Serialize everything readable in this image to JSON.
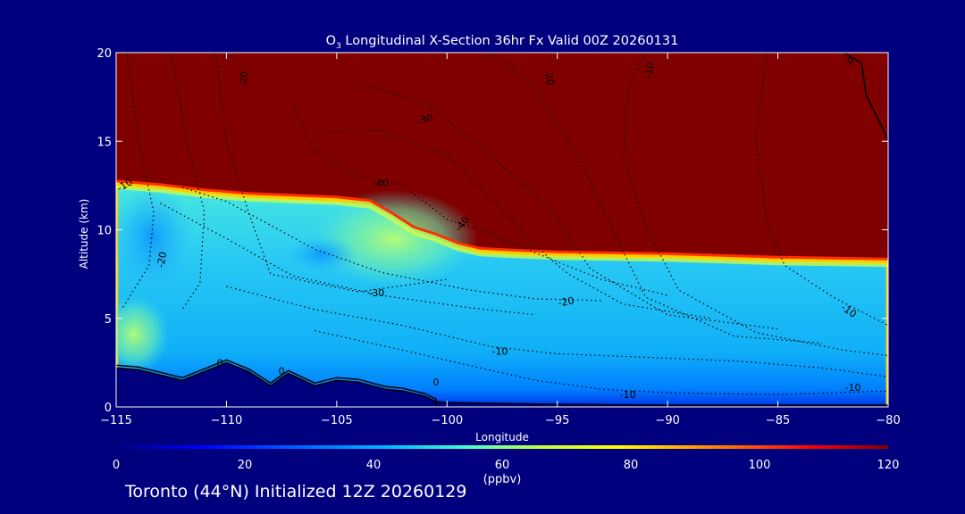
{
  "chart_data": {
    "type": "heatmap",
    "title_prefix": "O",
    "title_sub": "3",
    "title_rest": " Longitudinal X-Section 36hr  Fx Valid 00Z 20260131",
    "xlabel": "Longitude",
    "ylabel": "Altitude (km)",
    "xlim": [
      -115,
      -80
    ],
    "ylim": [
      0,
      20
    ],
    "xticks": [
      -115,
      -110,
      -105,
      -100,
      -95,
      -90,
      -85,
      -80
    ],
    "xtick_labels": [
      "−115",
      "−110",
      "−105",
      "−100",
      "−95",
      "−90",
      "−85",
      "−80"
    ],
    "yticks": [
      0,
      5,
      10,
      15,
      20
    ],
    "ytick_labels": [
      "0",
      "5",
      "10",
      "15",
      "20"
    ],
    "colorbar": {
      "label": "(ppbv)",
      "range": [
        0,
        120
      ],
      "ticks": [
        0,
        20,
        40,
        60,
        80,
        100,
        120
      ],
      "tick_labels": [
        "0",
        "20",
        "40",
        "60",
        "80",
        "100",
        "120"
      ]
    },
    "tropopause_altitude_km": {
      "lon": [
        -115,
        -113,
        -111,
        -109,
        -107,
        -105,
        -103.5,
        -102.5,
        -101.5,
        -100.5,
        -99.5,
        -98.5,
        -97,
        -95,
        -90,
        -85,
        -80
      ],
      "alt": [
        12.6,
        12.4,
        12.1,
        11.9,
        11.8,
        11.7,
        11.5,
        10.8,
        10.0,
        9.6,
        9.1,
        8.8,
        8.7,
        8.6,
        8.5,
        8.3,
        8.2
      ]
    },
    "terrain_altitude_km": {
      "lon": [
        -115,
        -114,
        -112,
        -111,
        -110,
        -109,
        -108,
        -107.2,
        -106,
        -105,
        -104,
        -103.4,
        -102.8,
        -102,
        -101,
        -100.6,
        -100.5,
        -100,
        -98,
        -95,
        -90,
        -85,
        -80
      ],
      "alt": [
        2.2,
        2.1,
        1.5,
        2.0,
        2.5,
        2.0,
        1.2,
        1.9,
        1.2,
        1.5,
        1.4,
        1.2,
        1.0,
        0.9,
        0.6,
        0.35,
        0.3,
        0.25,
        0.2,
        0.15,
        0.1,
        0.1,
        0.1
      ]
    },
    "contour_labels": [
      {
        "text": "-10",
        "lon": -114.6,
        "alt": 12.5,
        "angle": -30
      },
      {
        "text": "-20",
        "lon": -112.9,
        "alt": 8.3,
        "angle": -80
      },
      {
        "text": "-20",
        "lon": -109.2,
        "alt": 18.5,
        "angle": -85
      },
      {
        "text": "-30",
        "lon": -101.0,
        "alt": 16.2,
        "angle": -15
      },
      {
        "text": "-40",
        "lon": -103.0,
        "alt": 12.6,
        "angle": 0
      },
      {
        "text": "-40",
        "lon": -99.3,
        "alt": 10.3,
        "angle": -50
      },
      {
        "text": "-30",
        "lon": -103.2,
        "alt": 6.4,
        "angle": 0
      },
      {
        "text": "-20",
        "lon": -94.6,
        "alt": 5.9,
        "angle": -10
      },
      {
        "text": "-10",
        "lon": -97.6,
        "alt": 3.1,
        "angle": 0
      },
      {
        "text": "-10",
        "lon": -81.8,
        "alt": 5.4,
        "angle": 35
      },
      {
        "text": "-10",
        "lon": -90.8,
        "alt": 19.0,
        "angle": -80
      },
      {
        "text": "-20",
        "lon": -95.4,
        "alt": 18.6,
        "angle": 80
      },
      {
        "text": "-10",
        "lon": -91.8,
        "alt": 0.65,
        "angle": 0
      },
      {
        "text": "-10",
        "lon": -81.6,
        "alt": 1.05,
        "angle": 0
      },
      {
        "text": "0",
        "lon": -110.3,
        "alt": 2.45,
        "angle": 0
      },
      {
        "text": "0",
        "lon": -107.5,
        "alt": 2.0,
        "angle": 0
      },
      {
        "text": "0",
        "lon": -100.5,
        "alt": 1.35,
        "angle": 0
      },
      {
        "text": "0",
        "lon": -81.7,
        "alt": 19.5,
        "angle": -20
      }
    ]
  },
  "footer": "Toronto (44°N) Initialized 12Z 20260129"
}
